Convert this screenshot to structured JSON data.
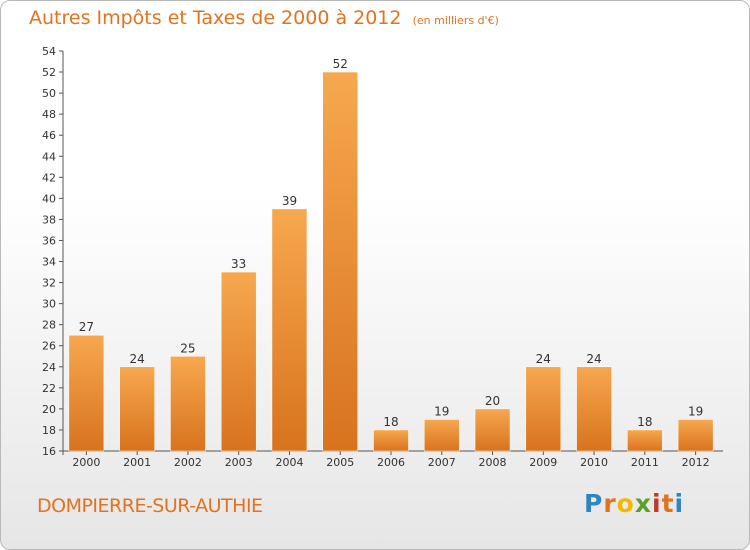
{
  "header": {
    "title": "Autres Impôts et Taxes de 2000 à 2012",
    "unit": "(en milliers d'€)"
  },
  "footer": {
    "commune": "DOMPIERRE-SUR-AUTHIE",
    "logo_letters": [
      "P",
      "r",
      "o",
      "x",
      "i",
      "t",
      "i"
    ]
  },
  "colors": {
    "title": "#e2731e",
    "bar_light": "#f7a84f",
    "bar_dark": "#d8731e",
    "logo": [
      "#2e86c1",
      "#e2731e",
      "#f3b700",
      "#5aa02c",
      "#c0392b",
      "#e2731e",
      "#2e86c1"
    ]
  },
  "chart_data": {
    "type": "bar",
    "categories": [
      "2000",
      "2001",
      "2002",
      "2003",
      "2004",
      "2005",
      "2006",
      "2007",
      "2008",
      "2009",
      "2010",
      "2011",
      "2012"
    ],
    "values": [
      27,
      24,
      25,
      33,
      39,
      52,
      18,
      19,
      20,
      24,
      24,
      18,
      19
    ],
    "data_labels": [
      "27",
      "24",
      "25",
      "33",
      "39",
      "52",
      "18",
      "19",
      "20",
      "24",
      "24",
      "18",
      "19"
    ],
    "ylim": [
      16,
      54
    ],
    "yticks": [
      16,
      18,
      20,
      22,
      24,
      26,
      28,
      30,
      32,
      34,
      36,
      38,
      40,
      42,
      44,
      46,
      48,
      50,
      52,
      54
    ],
    "grid": false,
    "legend": "none"
  }
}
